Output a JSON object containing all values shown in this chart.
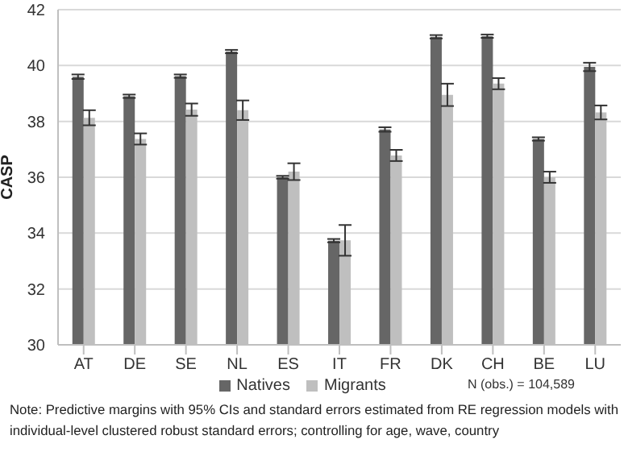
{
  "chart_data": {
    "type": "bar",
    "ylabel": "CASP",
    "categories": [
      "AT",
      "DE",
      "SE",
      "NL",
      "ES",
      "IT",
      "FR",
      "DK",
      "CH",
      "BE",
      "LU"
    ],
    "series": [
      {
        "name": "Natives",
        "color": "#666666",
        "values": [
          39.6,
          38.9,
          39.62,
          40.5,
          36.0,
          33.73,
          37.71,
          41.03,
          41.05,
          37.37,
          39.95
        ],
        "errors": [
          0.08,
          0.06,
          0.06,
          0.06,
          0.05,
          0.06,
          0.08,
          0.06,
          0.06,
          0.06,
          0.15
        ]
      },
      {
        "name": "Migrants",
        "color": "#bfbfbf",
        "values": [
          38.13,
          37.37,
          38.42,
          38.4,
          36.2,
          33.74,
          36.78,
          38.95,
          39.35,
          36.0,
          38.32
        ],
        "errors": [
          0.27,
          0.2,
          0.22,
          0.35,
          0.3,
          0.55,
          0.2,
          0.4,
          0.2,
          0.2,
          0.25
        ]
      }
    ],
    "ylim": [
      30,
      42
    ],
    "yticks": [
      30,
      32,
      34,
      36,
      38,
      40,
      42
    ],
    "grid": "y",
    "legend": "bottom",
    "annotations": [
      "N  (obs.) = 104,589",
      "Note: Predictive margins with 95% CIs and standard errors estimated from RE regression models with individual-level clustered robust standard errors; controlling for age, wave, country"
    ]
  }
}
